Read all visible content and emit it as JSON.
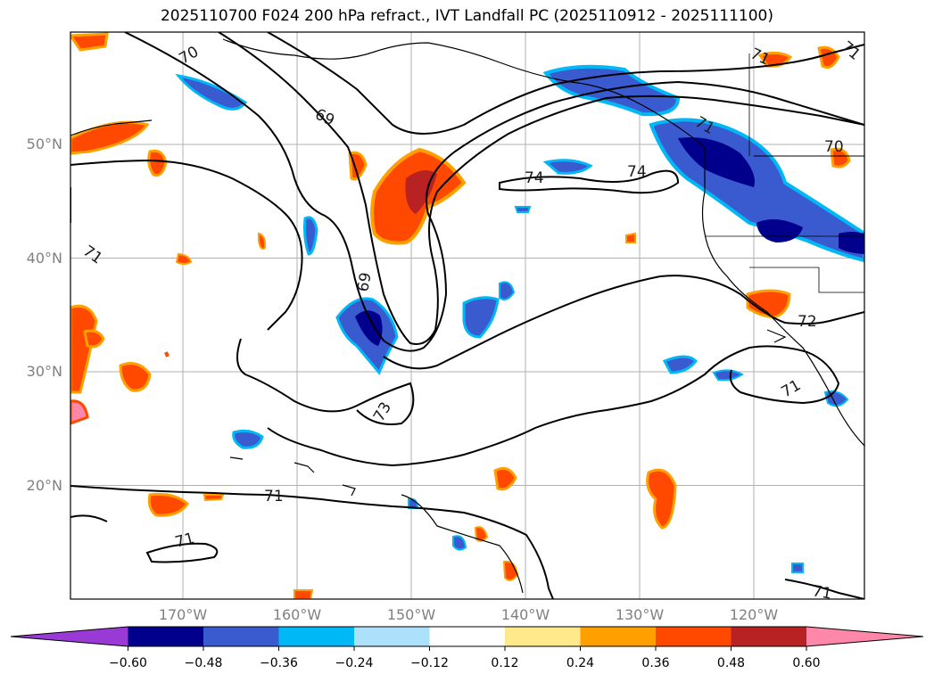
{
  "title": "2025110700 F024 200 hPa refract., IVT Landfall PC (2025110912 - 2025111100)",
  "map": {
    "lat_labels": [
      {
        "text": "50°N",
        "lat": 50
      },
      {
        "text": "40°N",
        "lat": 40
      },
      {
        "text": "30°N",
        "lat": 30
      },
      {
        "text": "20°N",
        "lat": 20
      }
    ],
    "lon_labels": [
      {
        "text": "170°W",
        "lon": -170
      },
      {
        "text": "160°W",
        "lon": -160
      },
      {
        "text": "150°W",
        "lon": -150
      },
      {
        "text": "140°W",
        "lon": -140
      },
      {
        "text": "130°W",
        "lon": -130
      },
      {
        "text": "120°W",
        "lon": -120
      }
    ],
    "contour_labels": [
      "70",
      "69",
      "69",
      "71",
      "74",
      "74",
      "71",
      "70",
      "71",
      "72",
      "71",
      "73",
      "71",
      "71",
      "71",
      "71"
    ]
  },
  "colorbar": {
    "ticks": [
      "−0.60",
      "−0.48",
      "−0.36",
      "−0.24",
      "−0.12",
      "0.12",
      "0.24",
      "0.36",
      "0.48",
      "0.60"
    ],
    "colors": [
      "#9a3ad6",
      "#00008c",
      "#3a5ad0",
      "#00b8f5",
      "#ade0fa",
      "#ffffff",
      "#ffe98a",
      "#ffa000",
      "#ff4800",
      "#b82222",
      "#ff88aa"
    ]
  }
}
